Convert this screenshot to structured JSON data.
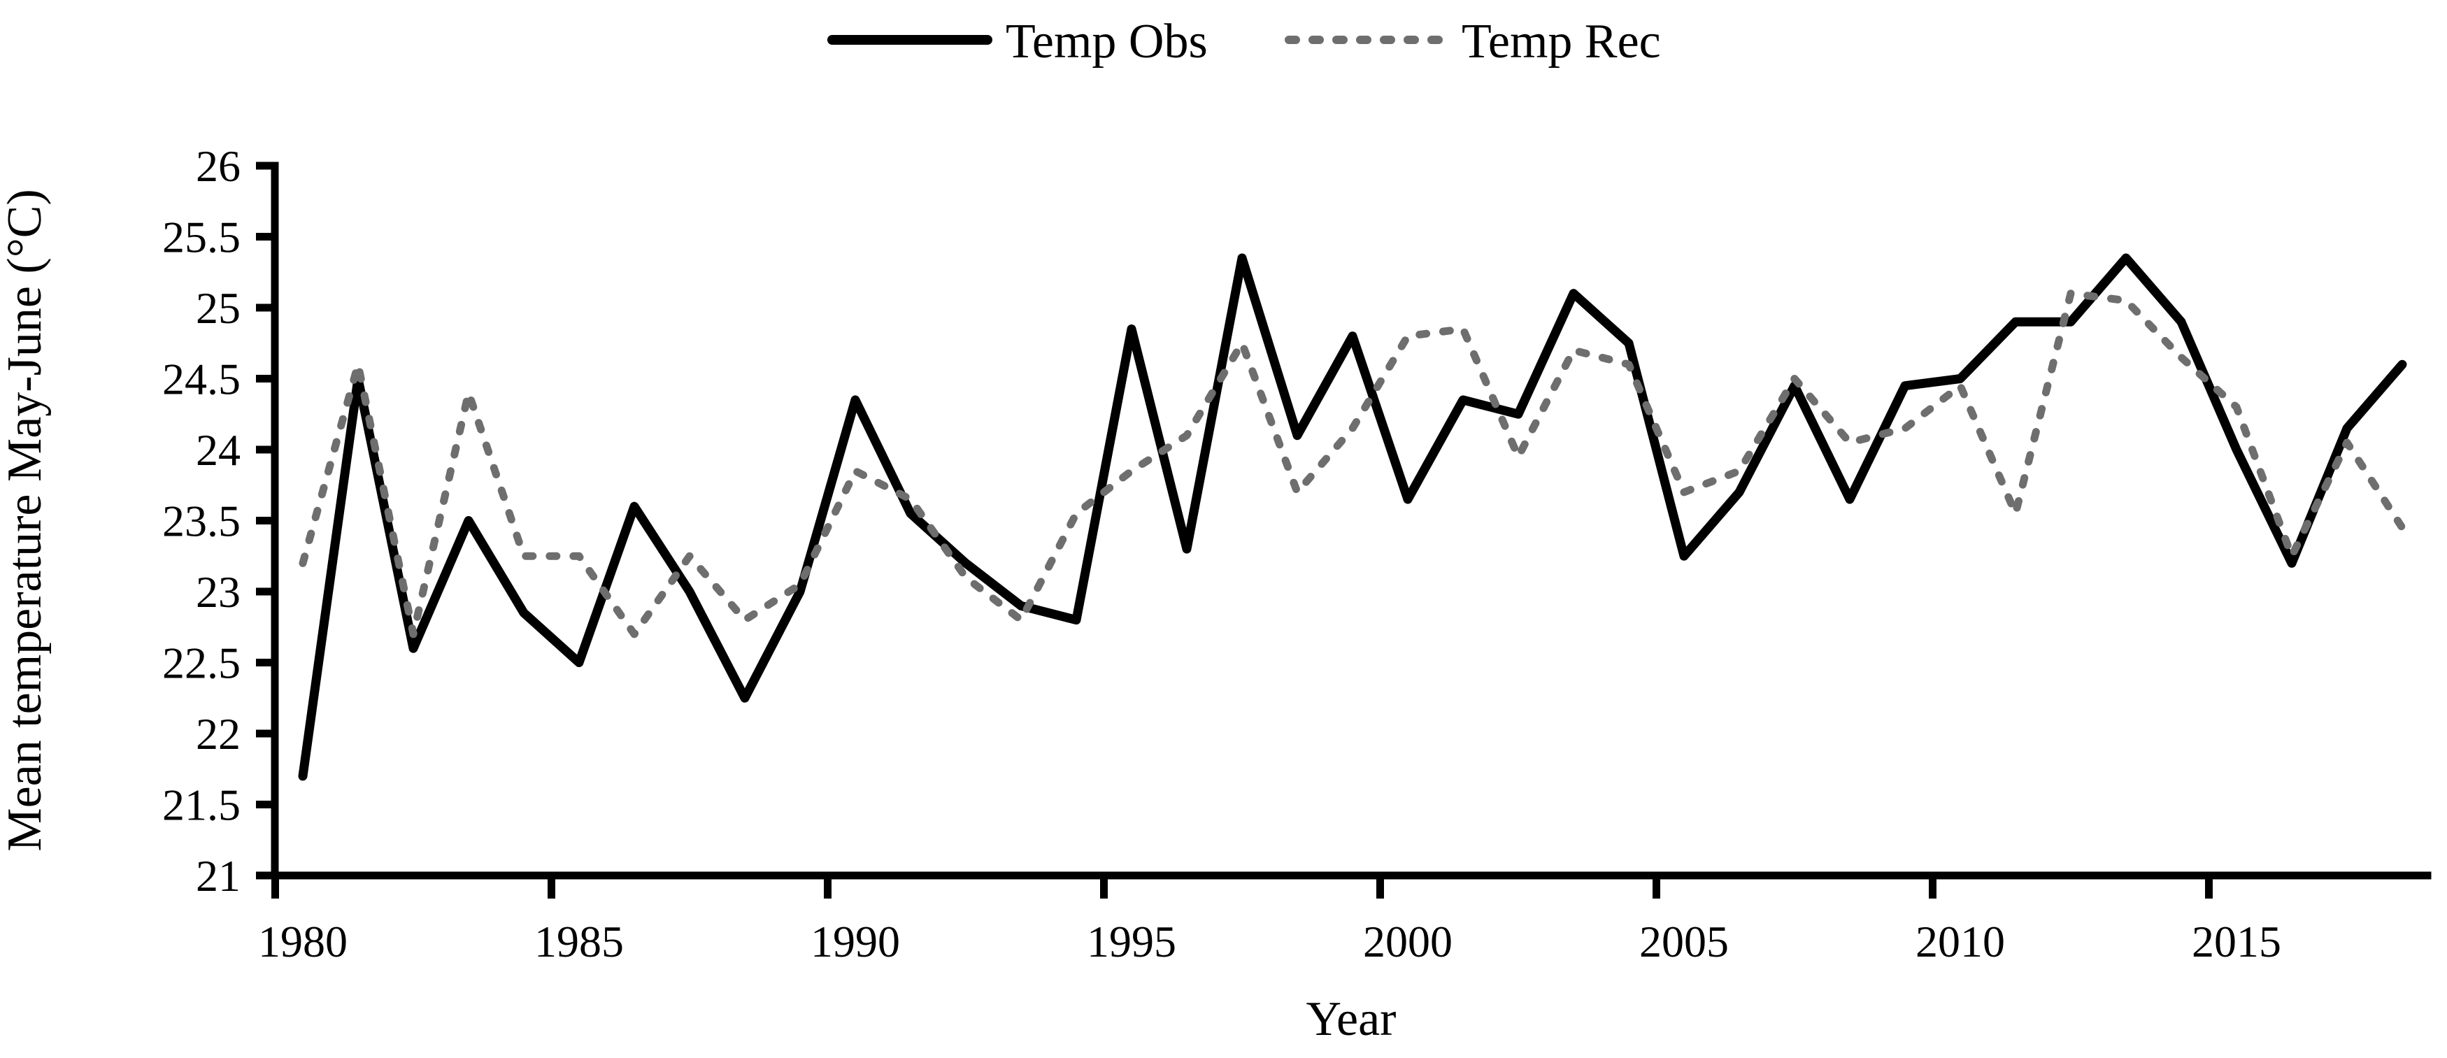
{
  "chart_data": {
    "type": "line",
    "title": "",
    "xlabel": "Year",
    "ylabel": "Mean temperature May-June (°C)",
    "x": [
      1980,
      1981,
      1982,
      1983,
      1984,
      1985,
      1986,
      1987,
      1988,
      1989,
      1990,
      1991,
      1992,
      1993,
      1994,
      1995,
      1996,
      1997,
      1998,
      1999,
      2000,
      2001,
      2002,
      2003,
      2004,
      2005,
      2006,
      2007,
      2008,
      2009,
      2010,
      2011,
      2012,
      2013,
      2014,
      2015,
      2016,
      2017,
      2018
    ],
    "series": [
      {
        "name": "Temp Obs",
        "color": "#000000",
        "line_style": "solid",
        "values": [
          21.7,
          24.5,
          22.6,
          23.5,
          22.85,
          22.5,
          23.6,
          23.0,
          22.25,
          23.0,
          24.35,
          23.55,
          23.2,
          22.9,
          22.8,
          24.85,
          23.3,
          25.35,
          24.1,
          24.8,
          23.65,
          24.35,
          24.25,
          25.1,
          24.75,
          23.25,
          23.7,
          24.45,
          23.65,
          24.45,
          24.5,
          24.9,
          24.9,
          25.35,
          24.9,
          24.0,
          23.2,
          24.15,
          24.6
        ]
      },
      {
        "name": "Temp Rec",
        "color": "#6e6e6e",
        "line_style": "dashed",
        "values": [
          23.2,
          24.6,
          22.7,
          24.4,
          23.25,
          23.25,
          22.7,
          23.25,
          22.8,
          23.05,
          23.85,
          23.65,
          23.1,
          22.8,
          23.55,
          23.85,
          24.1,
          24.75,
          23.7,
          24.15,
          24.8,
          24.85,
          23.95,
          24.7,
          24.6,
          23.7,
          23.85,
          24.5,
          24.05,
          24.15,
          24.45,
          23.55,
          25.1,
          25.05,
          24.65,
          24.3,
          23.25,
          24.05,
          23.45
        ]
      }
    ],
    "ylim": [
      21,
      26
    ],
    "yticks": [
      21,
      21.5,
      22,
      22.5,
      23,
      23.5,
      24,
      24.5,
      25,
      25.5,
      26
    ],
    "xticks": [
      1980,
      1985,
      1990,
      1995,
      2000,
      2005,
      2010,
      2015
    ],
    "legend_position": "top-center",
    "grid": false,
    "background": "#ffffff",
    "axis_color": "#000000"
  }
}
